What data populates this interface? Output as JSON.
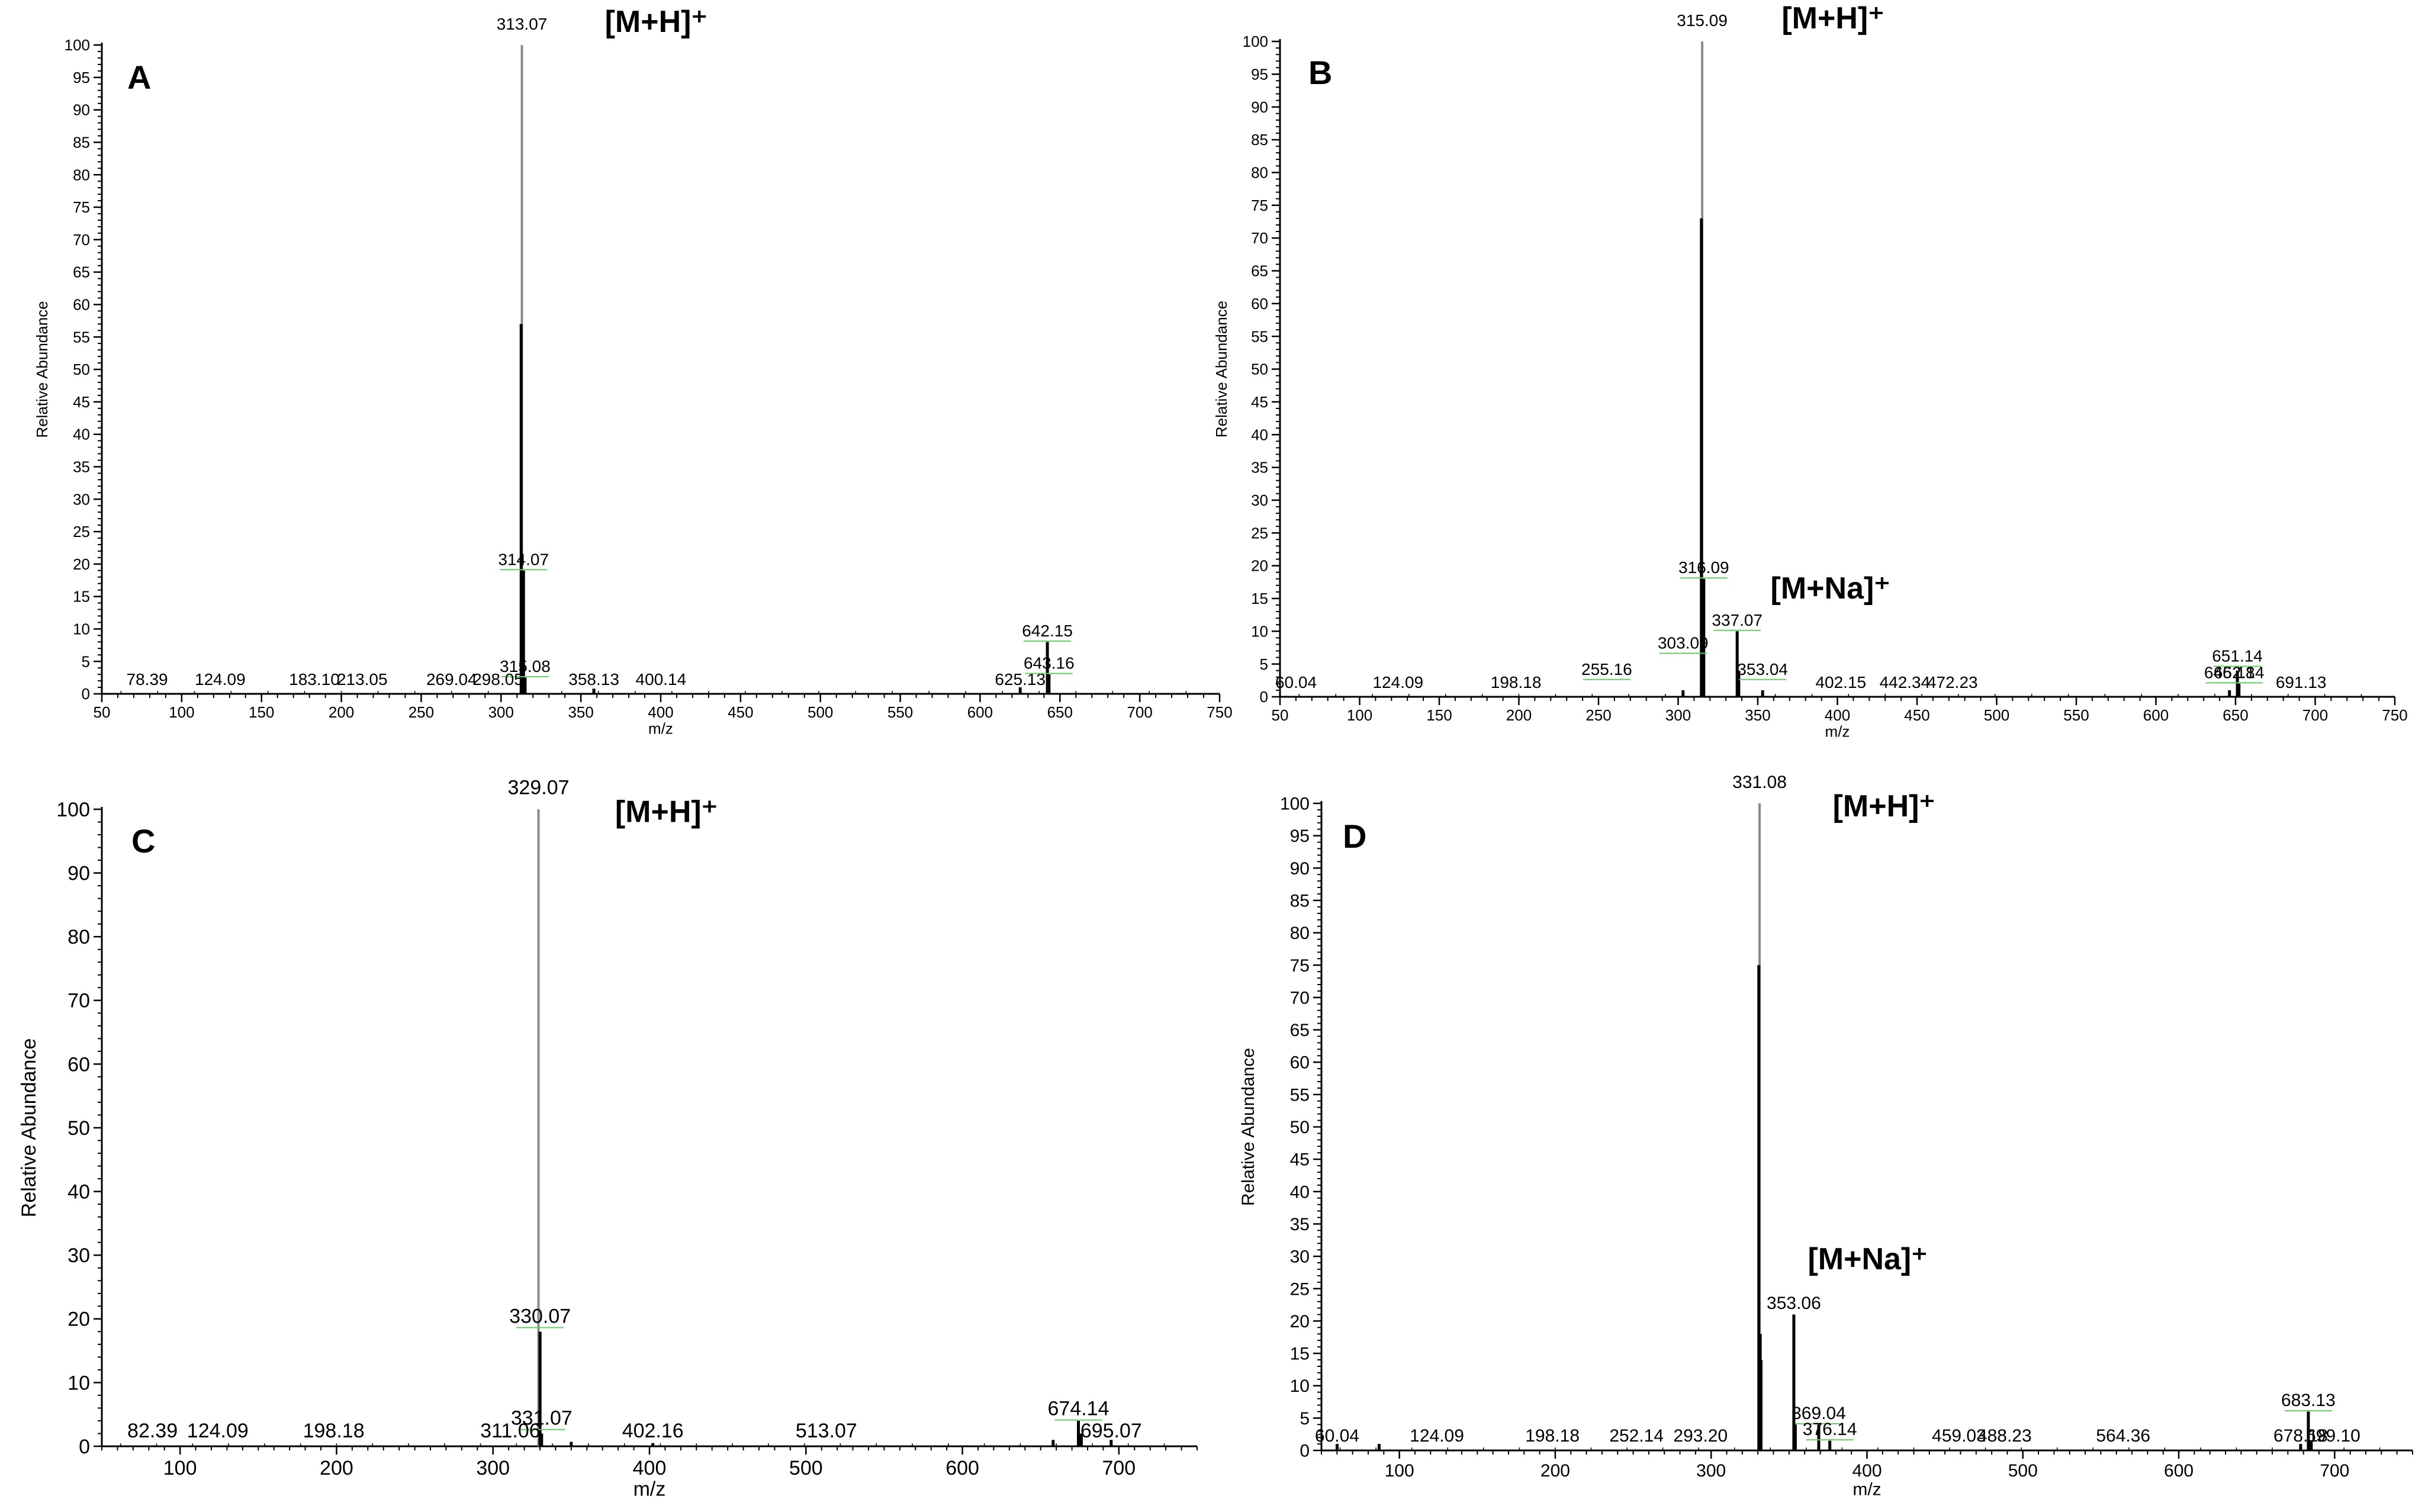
{
  "panels": [
    {
      "id": "A",
      "label": "A",
      "chart_data": {
        "type": "bar",
        "xlabel": "m/z",
        "ylabel": "Relative Abundance",
        "xlim": [
          50,
          750
        ],
        "ylim": [
          0,
          100
        ],
        "x_ticks": [
          50,
          100,
          150,
          200,
          250,
          300,
          350,
          400,
          450,
          500,
          550,
          600,
          650,
          700,
          750
        ],
        "y_ticks": [
          0,
          5,
          10,
          15,
          20,
          25,
          30,
          35,
          40,
          45,
          50,
          55,
          60,
          65,
          70,
          75,
          80,
          85,
          90,
          95,
          100
        ],
        "peaks": [
          {
            "mz": 313.07,
            "intensity": 100
          },
          {
            "mz": 312.6,
            "intensity": 57
          },
          {
            "mz": 314.07,
            "intensity": 19
          },
          {
            "mz": 315.08,
            "intensity": 2.5
          },
          {
            "mz": 642.15,
            "intensity": 8
          },
          {
            "mz": 643.16,
            "intensity": 3
          },
          {
            "mz": 625.13,
            "intensity": 1
          },
          {
            "mz": 358.13,
            "intensity": 0.8
          }
        ],
        "peak_labels": [
          {
            "text": "313.07",
            "x": 313.07,
            "y": 102
          },
          {
            "text": "314.07",
            "x": 314.07,
            "y": 19.5
          },
          {
            "text": "315.08",
            "x": 315.08,
            "y": 3
          },
          {
            "text": "358.13",
            "x": 358.13,
            "y": 1
          },
          {
            "text": "400.14",
            "x": 400.14,
            "y": 1
          },
          {
            "text": "78.39",
            "x": 78.39,
            "y": 1
          },
          {
            "text": "124.09",
            "x": 124.09,
            "y": 1
          },
          {
            "text": "183.10",
            "x": 183.1,
            "y": 1
          },
          {
            "text": "213.05",
            "x": 213.05,
            "y": 1
          },
          {
            "text": "269.04",
            "x": 269.04,
            "y": 1
          },
          {
            "text": "298.05",
            "x": 298.05,
            "y": 1
          },
          {
            "text": "625.13",
            "x": 625.13,
            "y": 1
          },
          {
            "text": "642.15",
            "x": 642.15,
            "y": 8.5
          },
          {
            "text": "643.16",
            "x": 643.16,
            "y": 3.5
          }
        ],
        "annotations": [
          {
            "text": "[M+H]⁺",
            "x": 365,
            "y": 102
          }
        ]
      }
    },
    {
      "id": "B",
      "label": "B",
      "chart_data": {
        "type": "bar",
        "xlabel": "m/z",
        "ylabel": "Relative Abundance",
        "xlim": [
          50,
          750
        ],
        "ylim": [
          0,
          100
        ],
        "x_ticks": [
          50,
          100,
          150,
          200,
          250,
          300,
          350,
          400,
          450,
          500,
          550,
          600,
          650,
          700,
          750
        ],
        "y_ticks": [
          0,
          5,
          10,
          15,
          20,
          25,
          30,
          35,
          40,
          45,
          50,
          55,
          60,
          65,
          70,
          75,
          80,
          85,
          90,
          95,
          100
        ],
        "peaks": [
          {
            "mz": 315.09,
            "intensity": 100
          },
          {
            "mz": 314.6,
            "intensity": 73
          },
          {
            "mz": 316.09,
            "intensity": 18
          },
          {
            "mz": 337.07,
            "intensity": 10
          },
          {
            "mz": 338.07,
            "intensity": 4
          },
          {
            "mz": 303.09,
            "intensity": 1
          },
          {
            "mz": 353.04,
            "intensity": 1
          },
          {
            "mz": 651.14,
            "intensity": 4
          },
          {
            "mz": 652.14,
            "intensity": 2
          },
          {
            "mz": 646.18,
            "intensity": 1
          }
        ],
        "peak_labels": [
          {
            "text": "315.09",
            "x": 315.09,
            "y": 102
          },
          {
            "text": "316.09",
            "x": 316.09,
            "y": 18.5
          },
          {
            "text": "337.07",
            "x": 337.07,
            "y": 10.5
          },
          {
            "text": "353.04",
            "x": 353.04,
            "y": 3
          },
          {
            "text": "303.09",
            "x": 303.09,
            "y": 7
          },
          {
            "text": "60.04",
            "x": 60.04,
            "y": 1
          },
          {
            "text": "124.09",
            "x": 124.09,
            "y": 1
          },
          {
            "text": "198.18",
            "x": 198.18,
            "y": 1
          },
          {
            "text": "255.16",
            "x": 255.16,
            "y": 3
          },
          {
            "text": "402.15",
            "x": 402.15,
            "y": 1
          },
          {
            "text": "442.34",
            "x": 442.34,
            "y": 1
          },
          {
            "text": "472.23",
            "x": 472.23,
            "y": 1
          },
          {
            "text": "646.18",
            "x": 646.18,
            "y": 2.5
          },
          {
            "text": "651.14",
            "x": 651.14,
            "y": 5
          },
          {
            "text": "652.14",
            "x": 652.14,
            "y": 2.5
          },
          {
            "text": "691.13",
            "x": 691.13,
            "y": 1
          }
        ],
        "annotations": [
          {
            "text": "[M+H]⁺",
            "x": 365,
            "y": 102
          },
          {
            "text": "[M+Na]⁺",
            "x": 358,
            "y": 15
          }
        ]
      }
    },
    {
      "id": "C",
      "label": "C",
      "chart_data": {
        "type": "bar",
        "xlabel": "m/z",
        "ylabel": "Relative Abundance",
        "xlim": [
          50,
          750
        ],
        "ylim": [
          0,
          100
        ],
        "x_ticks": [
          100,
          200,
          300,
          400,
          500,
          600,
          700
        ],
        "y_ticks": [
          0,
          10,
          20,
          30,
          40,
          50,
          60,
          70,
          80,
          90,
          100
        ],
        "peaks": [
          {
            "mz": 329.07,
            "intensity": 100
          },
          {
            "mz": 330.07,
            "intensity": 18
          },
          {
            "mz": 331.07,
            "intensity": 2
          },
          {
            "mz": 674.14,
            "intensity": 4
          },
          {
            "mz": 676,
            "intensity": 2
          },
          {
            "mz": 658,
            "intensity": 1
          },
          {
            "mz": 695.07,
            "intensity": 1
          },
          {
            "mz": 402.16,
            "intensity": 0.5
          },
          {
            "mz": 350,
            "intensity": 0.7
          }
        ],
        "peak_labels": [
          {
            "text": "329.07",
            "x": 329.07,
            "y": 102
          },
          {
            "text": "330.07",
            "x": 330.07,
            "y": 19
          },
          {
            "text": "331.07",
            "x": 331.07,
            "y": 3
          },
          {
            "text": "82.39",
            "x": 82.39,
            "y": 1
          },
          {
            "text": "124.09",
            "x": 124.09,
            "y": 1
          },
          {
            "text": "198.18",
            "x": 198.18,
            "y": 1
          },
          {
            "text": "311.06",
            "x": 311.06,
            "y": 1
          },
          {
            "text": "402.16",
            "x": 402.16,
            "y": 1
          },
          {
            "text": "513.07",
            "x": 513.07,
            "y": 1
          },
          {
            "text": "674.14",
            "x": 674.14,
            "y": 4.5
          },
          {
            "text": "695.07",
            "x": 695.07,
            "y": 1
          }
        ],
        "annotations": [
          {
            "text": "[M+H]⁺",
            "x": 378,
            "y": 98
          }
        ]
      }
    },
    {
      "id": "D",
      "label": "D",
      "chart_data": {
        "type": "bar",
        "xlabel": "m/z",
        "ylabel": "Relative Abundance",
        "xlim": [
          50,
          750
        ],
        "ylim": [
          0,
          100
        ],
        "x_ticks": [
          100,
          200,
          300,
          400,
          500,
          600,
          700
        ],
        "y_ticks": [
          0,
          5,
          10,
          15,
          20,
          25,
          30,
          35,
          40,
          45,
          50,
          55,
          60,
          65,
          70,
          75,
          80,
          85,
          90,
          95,
          100
        ],
        "peaks": [
          {
            "mz": 331.08,
            "intensity": 100
          },
          {
            "mz": 330.6,
            "intensity": 75
          },
          {
            "mz": 331.5,
            "intensity": 18
          },
          {
            "mz": 332,
            "intensity": 14
          },
          {
            "mz": 353.06,
            "intensity": 21
          },
          {
            "mz": 354,
            "intensity": 4
          },
          {
            "mz": 369.04,
            "intensity": 4
          },
          {
            "mz": 376.14,
            "intensity": 1.5
          },
          {
            "mz": 683.13,
            "intensity": 6
          },
          {
            "mz": 678.18,
            "intensity": 1
          },
          {
            "mz": 685,
            "intensity": 1.5
          },
          {
            "mz": 60.04,
            "intensity": 1
          },
          {
            "mz": 87,
            "intensity": 1
          }
        ],
        "peak_labels": [
          {
            "text": "331.08",
            "x": 331.08,
            "y": 102
          },
          {
            "text": "353.06",
            "x": 353.06,
            "y": 21.5
          },
          {
            "text": "369.04",
            "x": 369.04,
            "y": 4.5
          },
          {
            "text": "376.14",
            "x": 376.14,
            "y": 2
          },
          {
            "text": "60.04",
            "x": 60.04,
            "y": 1
          },
          {
            "text": "124.09",
            "x": 124.09,
            "y": 1
          },
          {
            "text": "198.18",
            "x": 198.18,
            "y": 1
          },
          {
            "text": "252.14",
            "x": 252.14,
            "y": 1
          },
          {
            "text": "293.20",
            "x": 293.2,
            "y": 1
          },
          {
            "text": "459.03",
            "x": 459.03,
            "y": 1
          },
          {
            "text": "488.23",
            "x": 488.23,
            "y": 1
          },
          {
            "text": "564.36",
            "x": 564.36,
            "y": 1
          },
          {
            "text": "678.18",
            "x": 678.18,
            "y": 1
          },
          {
            "text": "683.13",
            "x": 683.13,
            "y": 6.5
          },
          {
            "text": "699.10",
            "x": 699.1,
            "y": 1
          }
        ],
        "annotations": [
          {
            "text": "[M+H]⁺",
            "x": 378,
            "y": 98
          },
          {
            "text": "[M+Na]⁺",
            "x": 362,
            "y": 28
          }
        ]
      }
    }
  ]
}
